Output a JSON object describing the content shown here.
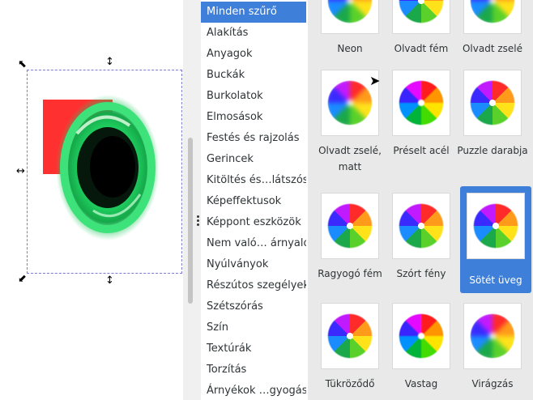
{
  "categories": [
    "Minden szűrő",
    "Alakítás",
    "Anyagok",
    "Buckák",
    "Burkolatok",
    "Elmosások",
    "Festés és rajzolás",
    "Gerincek",
    "Kitöltés és…látszóság",
    "Képeffektusok",
    "Képpont eszközök",
    "Nem való…  árnyalók",
    "Nyúlványok",
    "Részútos szegélyek",
    "Szétszórás",
    "Szín",
    "Textúrák",
    "Torzítás",
    "Árnyékok …gyogások"
  ],
  "active_category": "Minden szűrő",
  "filters": {
    "t0": "Neon",
    "t1": "Olvadt fém",
    "t2": "Olvadt zselé",
    "t3": "Olvadt zselé, matt",
    "t4": "Préselt acél",
    "t5": "Puzzle darabja",
    "t6": "Ragyogó fém",
    "t7": "Szórt fény",
    "t8": "Sötét üveg",
    "t9": "Tükröződő",
    "t10": "Vastag",
    "t11": "Virágzás"
  },
  "selected_filter": "Sötét üveg",
  "colors": {
    "accent": "#3d7fd9",
    "red_rect": "#ff3030",
    "green_ring": "#22c85a"
  }
}
